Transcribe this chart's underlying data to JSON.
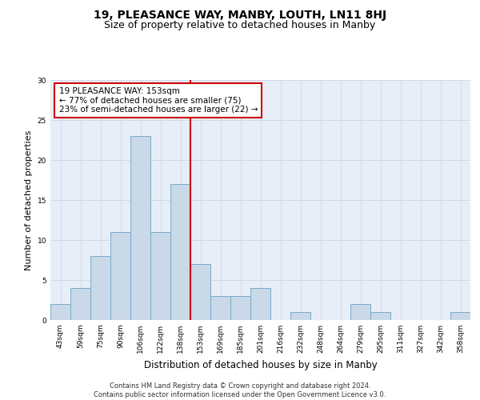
{
  "title": "19, PLEASANCE WAY, MANBY, LOUTH, LN11 8HJ",
  "subtitle": "Size of property relative to detached houses in Manby",
  "xlabel": "Distribution of detached houses by size in Manby",
  "ylabel": "Number of detached properties",
  "categories": [
    "43sqm",
    "59sqm",
    "75sqm",
    "90sqm",
    "106sqm",
    "122sqm",
    "138sqm",
    "153sqm",
    "169sqm",
    "185sqm",
    "201sqm",
    "216sqm",
    "232sqm",
    "248sqm",
    "264sqm",
    "279sqm",
    "295sqm",
    "311sqm",
    "327sqm",
    "342sqm",
    "358sqm"
  ],
  "values": [
    2,
    4,
    8,
    11,
    23,
    11,
    17,
    7,
    3,
    3,
    4,
    0,
    1,
    0,
    0,
    2,
    1,
    0,
    0,
    0,
    1
  ],
  "bar_color": "#c9d9e8",
  "bar_edge_color": "#7aaac8",
  "marker_index": 7,
  "marker_line_color": "#cc0000",
  "annotation_text": "19 PLEASANCE WAY: 153sqm\n← 77% of detached houses are smaller (75)\n23% of semi-detached houses are larger (22) →",
  "annotation_box_color": "#ffffff",
  "annotation_box_edge": "#cc0000",
  "ylim": [
    0,
    30
  ],
  "yticks": [
    0,
    5,
    10,
    15,
    20,
    25,
    30
  ],
  "grid_color": "#d0d8e8",
  "background_color": "#e8eef8",
  "footer": "Contains HM Land Registry data © Crown copyright and database right 2024.\nContains public sector information licensed under the Open Government Licence v3.0.",
  "title_fontsize": 10,
  "subtitle_fontsize": 9,
  "xlabel_fontsize": 8.5,
  "ylabel_fontsize": 8,
  "tick_fontsize": 6.5,
  "annotation_fontsize": 7.5,
  "footer_fontsize": 6
}
